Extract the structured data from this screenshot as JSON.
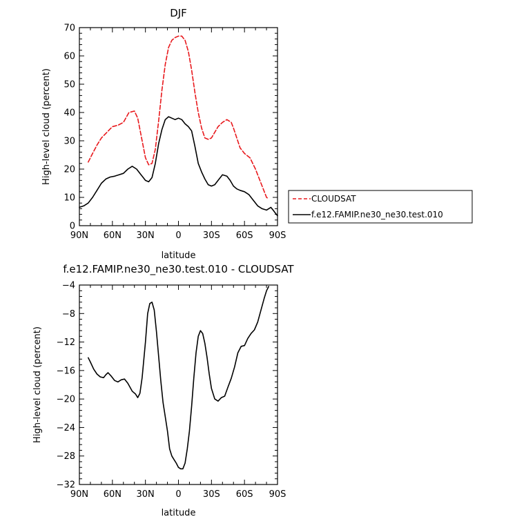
{
  "chart_data": [
    {
      "type": "line",
      "title": "DJF",
      "xlabel": "latitude",
      "ylabel": "High-level cloud (percent)",
      "xlim": [
        -90,
        90
      ],
      "ylim": [
        0,
        70
      ],
      "x_ticks": [
        -90,
        -60,
        -30,
        0,
        30,
        60,
        90
      ],
      "x_tick_labels": [
        "90N",
        "60N",
        "30N",
        "0",
        "30S",
        "60S",
        "90S"
      ],
      "y_ticks": [
        0,
        10,
        20,
        30,
        40,
        50,
        60,
        70
      ],
      "y_tick_labels": [
        "0",
        "10",
        "20",
        "30",
        "40",
        "50",
        "60",
        "70"
      ],
      "legend_position": "right",
      "series": [
        {
          "name": "CLOUDSAT",
          "color": "#e8171b",
          "dash": "dashed",
          "x": [
            -82,
            -78,
            -74,
            -70,
            -65,
            -60,
            -55,
            -50,
            -45,
            -40,
            -37,
            -35,
            -32,
            -30,
            -27,
            -24,
            -21,
            -18,
            -15,
            -12,
            -9,
            -6,
            -3,
            0,
            3,
            6,
            9,
            12,
            15,
            18,
            21,
            24,
            27,
            30,
            33,
            36,
            40,
            44,
            48,
            50,
            53,
            56,
            60,
            65,
            70,
            75,
            80,
            82
          ],
          "y": [
            22.5,
            25.5,
            28.5,
            31,
            33,
            35,
            35.5,
            36.5,
            40,
            40.5,
            38,
            34,
            28,
            24,
            21.5,
            22,
            27,
            37,
            48,
            57,
            63,
            65.5,
            66.5,
            67,
            67,
            65.5,
            61.5,
            55,
            47,
            40,
            34.5,
            31,
            30.5,
            31,
            33,
            35,
            36.5,
            37.5,
            36.5,
            34.5,
            31,
            27.5,
            25.5,
            24,
            20,
            15,
            10,
            9.5
          ]
        },
        {
          "name": "f.e12.FAMIP.ne30_ne30.test.010",
          "color": "#000000",
          "dash": "solid",
          "x": [
            -90,
            -86,
            -82,
            -78,
            -74,
            -70,
            -66,
            -62,
            -58,
            -54,
            -50,
            -46,
            -42,
            -38,
            -34,
            -30,
            -27,
            -24,
            -21,
            -18,
            -15,
            -12,
            -9,
            -6,
            -3,
            0,
            3,
            6,
            9,
            12,
            15,
            18,
            21,
            24,
            27,
            30,
            33,
            36,
            40,
            44,
            47,
            50,
            53,
            56,
            60,
            64,
            68,
            72,
            76,
            80,
            84,
            86,
            88,
            90
          ],
          "y": [
            6.5,
            7,
            8,
            10,
            12.5,
            15,
            16.5,
            17.2,
            17.5,
            18,
            18.5,
            20,
            21,
            20,
            18,
            16,
            15.5,
            17,
            22,
            29,
            34,
            37.5,
            38.5,
            38,
            37.5,
            38,
            37.5,
            36,
            35,
            33.5,
            28,
            22,
            19,
            16.5,
            14.5,
            14,
            14.5,
            16,
            18,
            17.5,
            16,
            14,
            13,
            12.5,
            12,
            11,
            9,
            7,
            6,
            5.5,
            6.5,
            5.5,
            4.5,
            3.5
          ]
        }
      ]
    },
    {
      "type": "line",
      "title": "f.e12.FAMIP.ne30_ne30.test.010 - CLOUDSAT",
      "xlabel": "latitude",
      "ylabel": "High-level cloud (percent)",
      "xlim": [
        -90,
        90
      ],
      "ylim": [
        -32,
        -4
      ],
      "x_ticks": [
        -90,
        -60,
        -30,
        0,
        30,
        60,
        90
      ],
      "x_tick_labels": [
        "90N",
        "60N",
        "30N",
        "0",
        "30S",
        "60S",
        "90S"
      ],
      "y_ticks": [
        -32,
        -28,
        -24,
        -20,
        -16,
        -12,
        -8,
        -4
      ],
      "y_tick_labels": [
        "−32",
        "−28",
        "−24",
        "−20",
        "−16",
        "−12",
        "−8",
        "−4"
      ],
      "series": [
        {
          "color": "#000000",
          "dash": "solid",
          "x": [
            -82,
            -80,
            -77,
            -74,
            -71,
            -68,
            -66,
            -64,
            -61,
            -58,
            -55,
            -52,
            -49,
            -46,
            -42,
            -39,
            -37,
            -35,
            -33,
            -30,
            -28,
            -26,
            -24,
            -22,
            -20,
            -18,
            -16,
            -14,
            -12,
            -10,
            -8,
            -6,
            -4,
            -2,
            0,
            2,
            4,
            6,
            8,
            10,
            12,
            14,
            16,
            18,
            20,
            22,
            24,
            26,
            28,
            30,
            33,
            36,
            39,
            42,
            45,
            48,
            51,
            54,
            57,
            60,
            63,
            66,
            69,
            72,
            75,
            78,
            80,
            82
          ],
          "y": [
            -14.2,
            -14.8,
            -15.8,
            -16.5,
            -16.9,
            -17,
            -16.6,
            -16.3,
            -16.8,
            -17.4,
            -17.6,
            -17.3,
            -17.2,
            -17.8,
            -18.9,
            -19.3,
            -19.8,
            -19.2,
            -17,
            -12,
            -8,
            -6.6,
            -6.4,
            -7.5,
            -10.5,
            -14,
            -17.5,
            -20.5,
            -22.5,
            -24.5,
            -27,
            -28,
            -28.5,
            -29,
            -29.6,
            -29.8,
            -29.8,
            -29,
            -27,
            -24.5,
            -21,
            -17,
            -13.5,
            -11.2,
            -10.4,
            -10.8,
            -12.2,
            -14.2,
            -16.5,
            -18.5,
            -20,
            -20.3,
            -19.8,
            -19.6,
            -18.3,
            -17.1,
            -15.5,
            -13.5,
            -12.6,
            -12.5,
            -11.5,
            -10.8,
            -10.3,
            -9.2,
            -7.5,
            -5.8,
            -4.8,
            -4.2
          ]
        }
      ]
    }
  ],
  "legend": {
    "entries": [
      {
        "label": "CLOUDSAT",
        "color": "#e8171b",
        "dash": "dashed"
      },
      {
        "label": "f.e12.FAMIP.ne30_ne30.test.010",
        "color": "#000000",
        "dash": "solid"
      }
    ]
  }
}
